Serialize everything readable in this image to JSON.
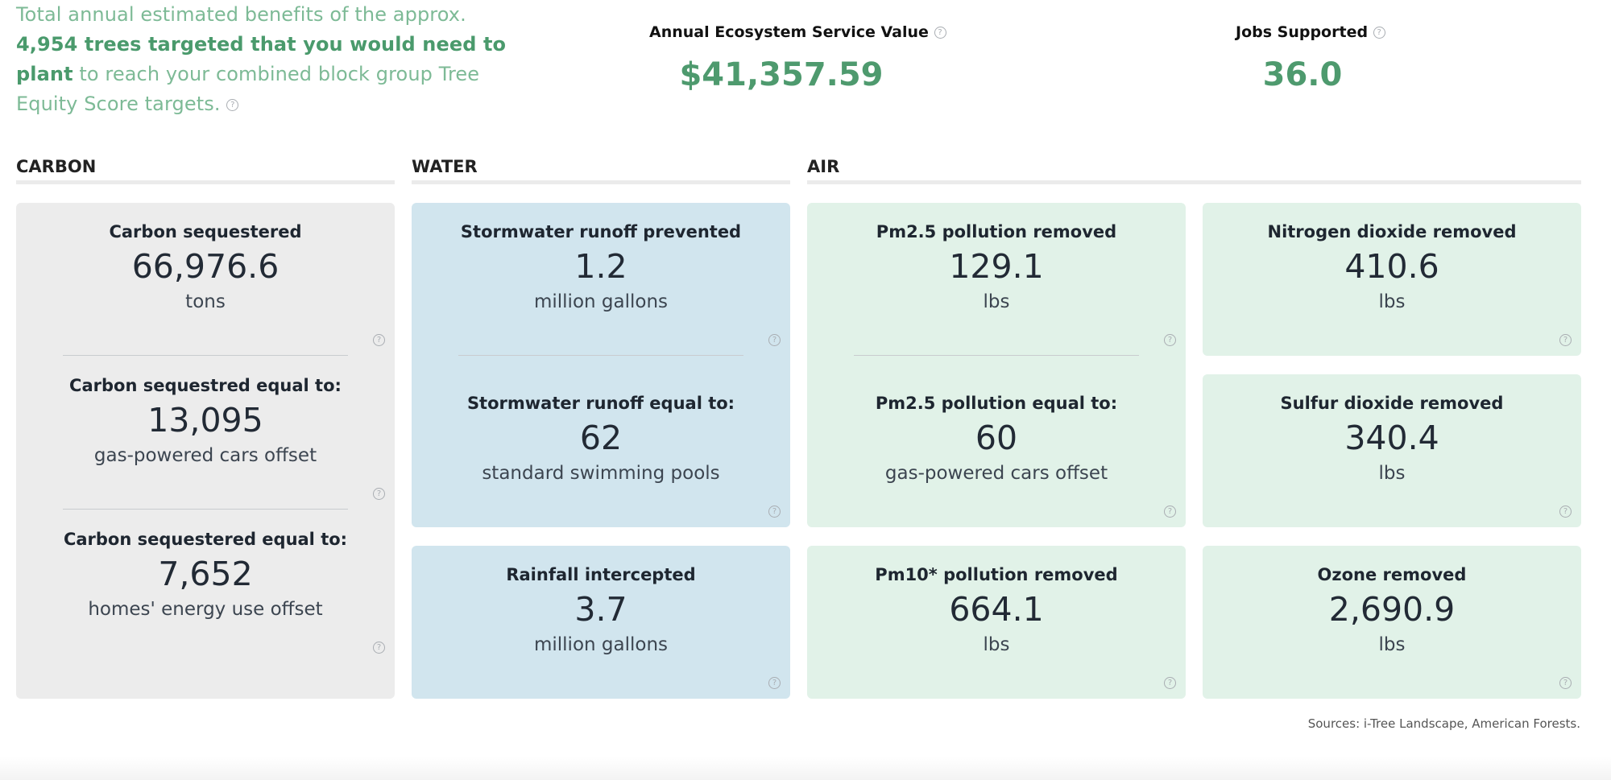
{
  "intro": {
    "pre": "Total annual estimated benefits of the approx. ",
    "bold": "4,954 trees targeted that you would need to plant",
    "post": " to reach your combined block group Tree Equity Score targets."
  },
  "metrics": {
    "ecosystem": {
      "label": "Annual Ecosystem Service Value",
      "value": "$41,357.59"
    },
    "jobs": {
      "label": "Jobs Supported",
      "value": "36.0"
    }
  },
  "sections": {
    "carbon": "CARBON",
    "water": "WATER",
    "air": "AIR"
  },
  "carbon": [
    {
      "label": "Carbon sequestered",
      "value": "66,976.6",
      "unit": "tons"
    },
    {
      "label": "Carbon sequestred equal to:",
      "value": "13,095",
      "unit": "gas-powered cars offset"
    },
    {
      "label": "Carbon sequestered equal to:",
      "value": "7,652",
      "unit": "homes' energy use offset"
    }
  ],
  "water": [
    {
      "label": "Stormwater runoff prevented",
      "value": "1.2",
      "unit": "million gallons"
    },
    {
      "label": "Stormwater runoff equal to:",
      "value": "62",
      "unit": "standard swimming pools"
    },
    {
      "label": "Rainfall intercepted",
      "value": "3.7",
      "unit": "million gallons"
    }
  ],
  "air": [
    {
      "label": "Pm2.5 pollution removed",
      "value": "129.1",
      "unit": "lbs"
    },
    {
      "label": "Pm2.5 pollution equal to:",
      "value": "60",
      "unit": "gas-powered cars offset"
    },
    {
      "label": "Pm10* pollution removed",
      "value": "664.1",
      "unit": "lbs"
    },
    {
      "label": "Nitrogen dioxide removed",
      "value": "410.6",
      "unit": "lbs"
    },
    {
      "label": "Sulfur dioxide removed",
      "value": "340.4",
      "unit": "lbs"
    },
    {
      "label": "Ozone removed",
      "value": "2,690.9",
      "unit": "lbs"
    }
  ],
  "help_icon_glyph": "?",
  "sources": "Sources: i-Tree Landscape, American Forests.",
  "colors": {
    "accent_green": "#4e9a6e",
    "intro_green": "#7dba96",
    "carbon_card": "#ececec",
    "water_card": "#d1e5ee",
    "air_card": "#e1f2e8"
  }
}
